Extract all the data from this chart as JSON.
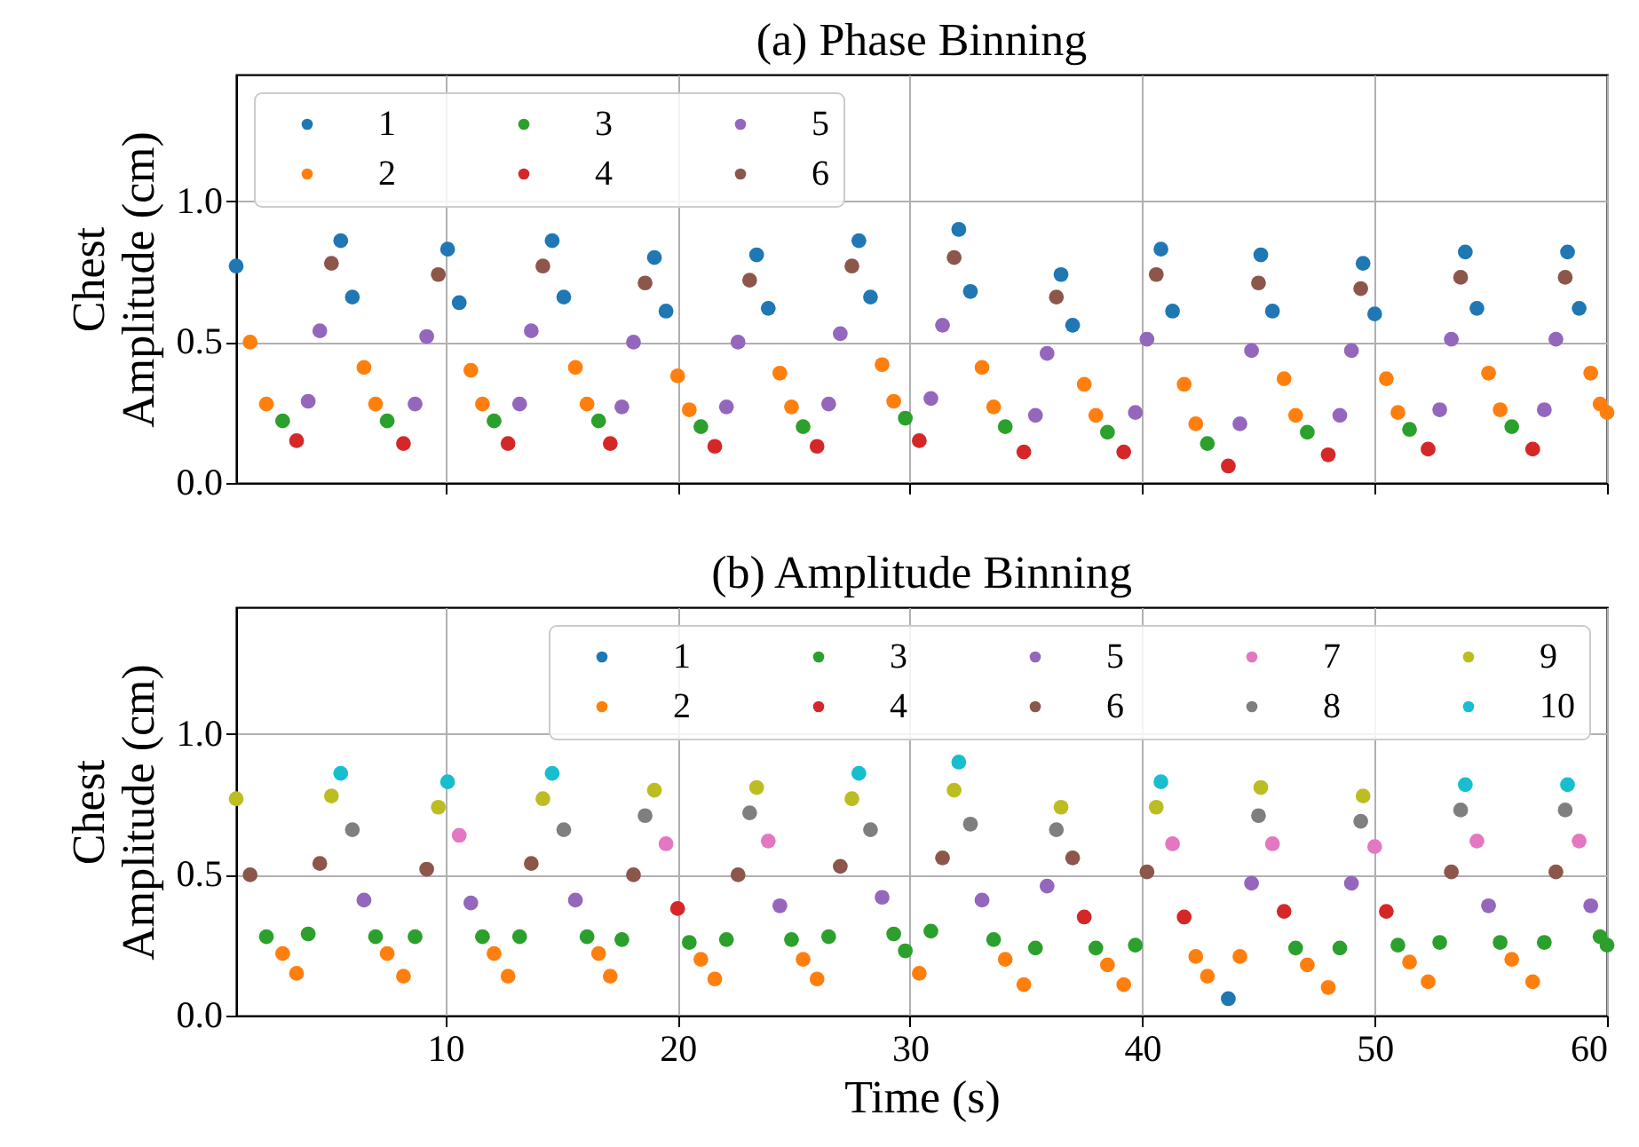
{
  "chart_data": [
    {
      "type": "scatter",
      "title": "(a) Phase Binning",
      "ylabel": "Chest Amplitude (cm)",
      "xlim": [
        1,
        60
      ],
      "xticks": [
        10,
        20,
        30,
        40,
        50,
        60
      ],
      "ylim": [
        0,
        1.45
      ],
      "yticks": [
        {
          "value": 0,
          "label": "0.0"
        },
        {
          "value": 0.5,
          "label": "0.5"
        },
        {
          "value": 1,
          "label": "1.0"
        }
      ],
      "grid": true,
      "legend": "top left",
      "marker": "circle",
      "tick_labels": "y",
      "series": [
        {
          "name": "1",
          "color": "#1f77b4",
          "x": [
            1.0,
            5.5,
            6.0,
            10.1,
            10.6,
            14.6,
            15.1,
            19.0,
            19.5,
            23.4,
            23.9,
            27.8,
            28.3,
            32.1,
            32.6,
            36.5,
            37.0,
            40.8,
            41.3,
            45.1,
            45.6,
            49.5,
            50.0,
            53.9,
            54.4,
            58.3,
            58.8
          ],
          "values": [
            0.77,
            0.86,
            0.66,
            0.83,
            0.64,
            0.86,
            0.66,
            0.8,
            0.61,
            0.81,
            0.62,
            0.86,
            0.66,
            0.9,
            0.68,
            0.74,
            0.56,
            0.83,
            0.61,
            0.81,
            0.61,
            0.78,
            0.6,
            0.82,
            0.62,
            0.82,
            0.62
          ]
        },
        {
          "name": "2",
          "color": "#ff7f0e",
          "x": [
            1.6,
            2.3,
            6.5,
            7.0,
            11.1,
            11.6,
            15.6,
            16.1,
            20.0,
            20.5,
            24.4,
            24.9,
            28.8,
            29.3,
            33.1,
            33.6,
            37.5,
            38.0,
            41.8,
            42.3,
            46.1,
            46.6,
            50.5,
            51.0,
            54.9,
            55.4,
            59.3,
            59.7,
            60.0
          ],
          "values": [
            0.5,
            0.28,
            0.41,
            0.28,
            0.4,
            0.28,
            0.41,
            0.28,
            0.38,
            0.26,
            0.39,
            0.27,
            0.42,
            0.29,
            0.41,
            0.27,
            0.35,
            0.24,
            0.35,
            0.21,
            0.37,
            0.24,
            0.37,
            0.25,
            0.39,
            0.26,
            0.39,
            0.28,
            0.25
          ]
        },
        {
          "name": "3",
          "color": "#2ca02c",
          "x": [
            3.0,
            7.5,
            12.1,
            16.6,
            21.0,
            25.4,
            29.8,
            34.1,
            38.5,
            42.8,
            47.1,
            51.5,
            55.9
          ],
          "values": [
            0.22,
            0.22,
            0.22,
            0.22,
            0.2,
            0.2,
            0.23,
            0.2,
            0.18,
            0.14,
            0.18,
            0.19,
            0.2
          ]
        },
        {
          "name": "4",
          "color": "#d62728",
          "x": [
            3.6,
            8.2,
            12.7,
            17.1,
            21.6,
            26.0,
            30.4,
            34.9,
            39.2,
            43.7,
            48.0,
            52.3,
            56.8
          ],
          "values": [
            0.15,
            0.14,
            0.14,
            0.14,
            0.13,
            0.13,
            0.15,
            0.11,
            0.11,
            0.06,
            0.1,
            0.12,
            0.12
          ]
        },
        {
          "name": "5",
          "color": "#9467bd",
          "x": [
            4.1,
            4.6,
            8.7,
            9.2,
            13.2,
            13.7,
            17.6,
            18.1,
            22.1,
            22.6,
            26.5,
            27.0,
            30.9,
            31.4,
            35.4,
            35.9,
            39.7,
            40.2,
            44.2,
            44.7,
            48.5,
            49.0,
            52.8,
            53.3,
            57.3,
            57.8
          ],
          "values": [
            0.29,
            0.54,
            0.28,
            0.52,
            0.28,
            0.54,
            0.27,
            0.5,
            0.27,
            0.5,
            0.28,
            0.53,
            0.3,
            0.56,
            0.24,
            0.46,
            0.25,
            0.51,
            0.21,
            0.47,
            0.24,
            0.47,
            0.26,
            0.51,
            0.26,
            0.51
          ]
        },
        {
          "name": "6",
          "color": "#8c564b",
          "x": [
            5.1,
            9.7,
            14.2,
            18.6,
            23.1,
            27.5,
            31.9,
            36.3,
            40.6,
            45.0,
            49.4,
            53.7,
            58.2
          ],
          "values": [
            0.78,
            0.74,
            0.77,
            0.71,
            0.72,
            0.77,
            0.8,
            0.66,
            0.74,
            0.71,
            0.69,
            0.73,
            0.73
          ]
        }
      ]
    },
    {
      "type": "scatter",
      "title": "(b) Amplitude Binning",
      "xlabel": "Time (s)",
      "ylabel": "Chest Amplitude (cm)",
      "xlim": [
        1,
        60
      ],
      "xticks": [
        10,
        20,
        30,
        40,
        50,
        60
      ],
      "ylim": [
        0,
        1.45
      ],
      "yticks": [
        {
          "value": 0,
          "label": "0.0"
        },
        {
          "value": 0.5,
          "label": "0.5"
        },
        {
          "value": 1,
          "label": "1.0"
        }
      ],
      "grid": true,
      "legend": "top right",
      "marker": "circle",
      "series": [
        {
          "name": "1",
          "color": "#1f77b4",
          "x": [
            43.7
          ],
          "values": [
            0.06
          ]
        },
        {
          "name": "2",
          "color": "#ff7f0e",
          "x": [
            3.0,
            3.6,
            7.5,
            8.2,
            12.1,
            12.7,
            16.6,
            17.1,
            21.0,
            21.6,
            25.4,
            26.0,
            30.4,
            34.1,
            34.9,
            38.5,
            39.2,
            42.3,
            42.8,
            44.2,
            47.1,
            48.0,
            51.5,
            52.3,
            55.9,
            56.8
          ],
          "values": [
            0.22,
            0.15,
            0.22,
            0.14,
            0.22,
            0.14,
            0.22,
            0.14,
            0.2,
            0.13,
            0.2,
            0.13,
            0.15,
            0.2,
            0.11,
            0.18,
            0.11,
            0.21,
            0.14,
            0.21,
            0.18,
            0.1,
            0.19,
            0.12,
            0.2,
            0.12
          ]
        },
        {
          "name": "3",
          "color": "#2ca02c",
          "x": [
            2.3,
            4.1,
            7.0,
            8.7,
            11.6,
            13.2,
            16.1,
            17.6,
            20.5,
            22.1,
            24.9,
            26.5,
            29.3,
            29.8,
            30.9,
            33.6,
            35.4,
            38.0,
            39.7,
            46.6,
            48.5,
            51.0,
            52.8,
            55.4,
            57.3,
            59.7,
            60.0
          ],
          "values": [
            0.28,
            0.29,
            0.28,
            0.28,
            0.28,
            0.28,
            0.28,
            0.27,
            0.26,
            0.27,
            0.27,
            0.28,
            0.29,
            0.23,
            0.3,
            0.27,
            0.24,
            0.24,
            0.25,
            0.24,
            0.24,
            0.25,
            0.26,
            0.26,
            0.26,
            0.28,
            0.25
          ]
        },
        {
          "name": "4",
          "color": "#d62728",
          "x": [
            20.0,
            37.5,
            41.8,
            46.1,
            50.5
          ],
          "values": [
            0.38,
            0.35,
            0.35,
            0.37,
            0.37
          ]
        },
        {
          "name": "5",
          "color": "#9467bd",
          "x": [
            6.5,
            11.1,
            15.6,
            24.4,
            28.8,
            33.1,
            35.9,
            44.7,
            49.0,
            54.9,
            59.3
          ],
          "values": [
            0.41,
            0.4,
            0.41,
            0.39,
            0.42,
            0.41,
            0.46,
            0.47,
            0.47,
            0.39,
            0.39
          ]
        },
        {
          "name": "6",
          "color": "#8c564b",
          "x": [
            1.6,
            4.6,
            9.2,
            13.7,
            18.1,
            22.6,
            27.0,
            31.4,
            37.0,
            40.2,
            53.3,
            57.8
          ],
          "values": [
            0.5,
            0.54,
            0.52,
            0.54,
            0.5,
            0.5,
            0.53,
            0.56,
            0.56,
            0.51,
            0.51,
            0.51
          ]
        },
        {
          "name": "7",
          "color": "#e377c2",
          "x": [
            10.6,
            19.5,
            23.9,
            41.3,
            45.6,
            50.0,
            54.4,
            58.8
          ],
          "values": [
            0.64,
            0.61,
            0.62,
            0.61,
            0.61,
            0.6,
            0.62,
            0.62
          ]
        },
        {
          "name": "8",
          "color": "#7f7f7f",
          "x": [
            6.0,
            15.1,
            18.6,
            23.1,
            28.3,
            32.6,
            36.3,
            45.0,
            49.4,
            53.7,
            58.2
          ],
          "values": [
            0.66,
            0.66,
            0.71,
            0.72,
            0.66,
            0.68,
            0.66,
            0.71,
            0.69,
            0.73,
            0.73
          ]
        },
        {
          "name": "9",
          "color": "#bcbd22",
          "x": [
            1.0,
            5.1,
            9.7,
            14.2,
            19.0,
            23.4,
            27.5,
            31.9,
            36.5,
            40.6,
            45.1,
            49.5
          ],
          "values": [
            0.77,
            0.78,
            0.74,
            0.77,
            0.8,
            0.81,
            0.77,
            0.8,
            0.74,
            0.74,
            0.81,
            0.78
          ]
        },
        {
          "name": "10",
          "color": "#17becf",
          "x": [
            5.5,
            10.1,
            14.6,
            27.8,
            32.1,
            40.8,
            53.9,
            58.3
          ],
          "values": [
            0.86,
            0.83,
            0.86,
            0.86,
            0.9,
            0.83,
            0.82,
            0.82
          ]
        }
      ]
    }
  ]
}
